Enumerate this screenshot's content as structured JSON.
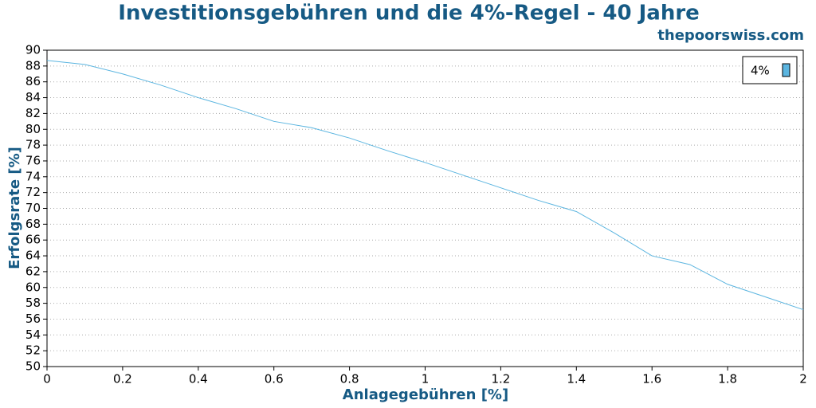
{
  "chart_data": {
    "type": "line",
    "title": "Investitionsgebühren und die 4%-Regel - 40 Jahre",
    "subtitle": "thepoorswiss.com",
    "x_label": "Anlagegebühren [%]",
    "y_label": "Erfolgsrate [%]",
    "x": [
      0,
      0.1,
      0.2,
      0.3,
      0.4,
      0.5,
      0.6,
      0.7,
      0.8,
      0.9,
      1,
      1.1,
      1.2,
      1.3,
      1.4,
      1.5,
      1.6,
      1.7,
      1.8,
      1.9,
      2
    ],
    "series": [
      {
        "name": "4%",
        "color": "#5bb5e0",
        "values": [
          88.7,
          88.2,
          87.0,
          85.6,
          84.0,
          82.6,
          81.0,
          80.2,
          78.9,
          77.3,
          75.8,
          74.2,
          72.6,
          71.0,
          69.6,
          66.9,
          64.0,
          62.9,
          60.4,
          58.8,
          57.2
        ]
      }
    ],
    "xlim": [
      0,
      2
    ],
    "xticks": [
      0,
      0.2,
      0.4,
      0.6,
      0.8,
      1,
      1.2,
      1.4,
      1.6,
      1.8,
      2
    ],
    "ylim": [
      50,
      90
    ],
    "yticks": [
      50,
      52,
      54,
      56,
      58,
      60,
      62,
      64,
      66,
      68,
      70,
      72,
      74,
      76,
      78,
      80,
      82,
      84,
      86,
      88,
      90
    ],
    "grid": true,
    "legend": "upper right"
  }
}
